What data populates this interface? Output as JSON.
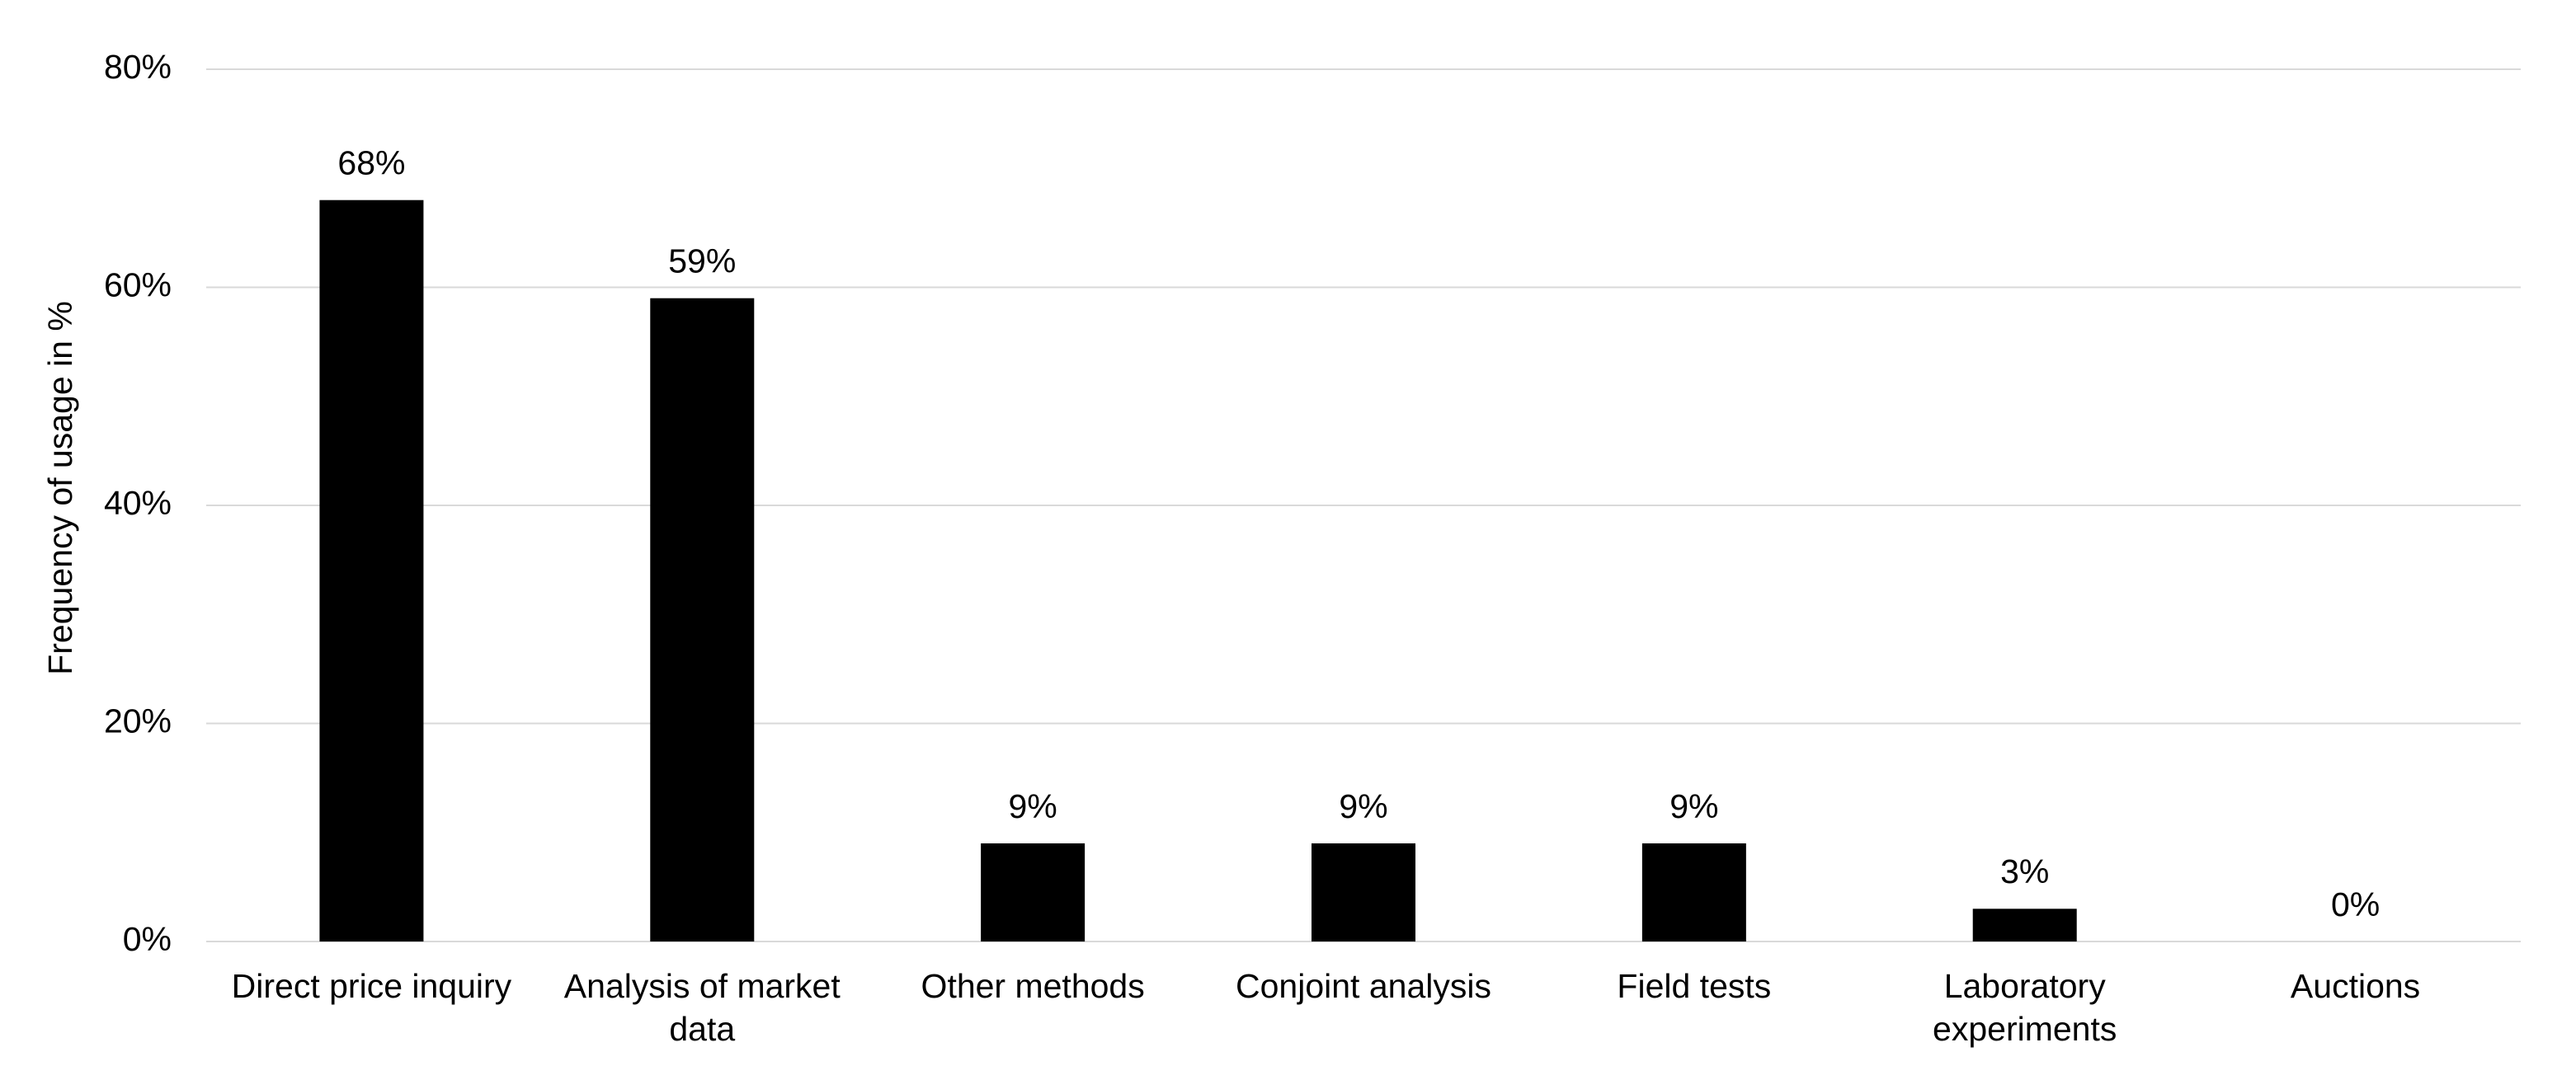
{
  "chart_data": {
    "type": "bar",
    "y_label": "Frequency of usage in %",
    "categories": [
      "Direct price inquiry",
      "Analysis of market data",
      "Other methods",
      "Conjoint analysis",
      "Field tests",
      "Laboratory experiments",
      "Auctions"
    ],
    "values": [
      68,
      59,
      9,
      9,
      9,
      3,
      0
    ],
    "value_labels": [
      "68%",
      "59%",
      "9%",
      "9%",
      "9%",
      "3%",
      "0%"
    ],
    "color": "#000000",
    "ylim": [
      0,
      80
    ],
    "yticks": [
      {
        "value": 0,
        "label": "0%"
      },
      {
        "value": 20,
        "label": "20%"
      },
      {
        "value": 40,
        "label": "40%"
      },
      {
        "value": 60,
        "label": "60%"
      },
      {
        "value": 80,
        "label": "80%"
      }
    ],
    "grid": true
  }
}
